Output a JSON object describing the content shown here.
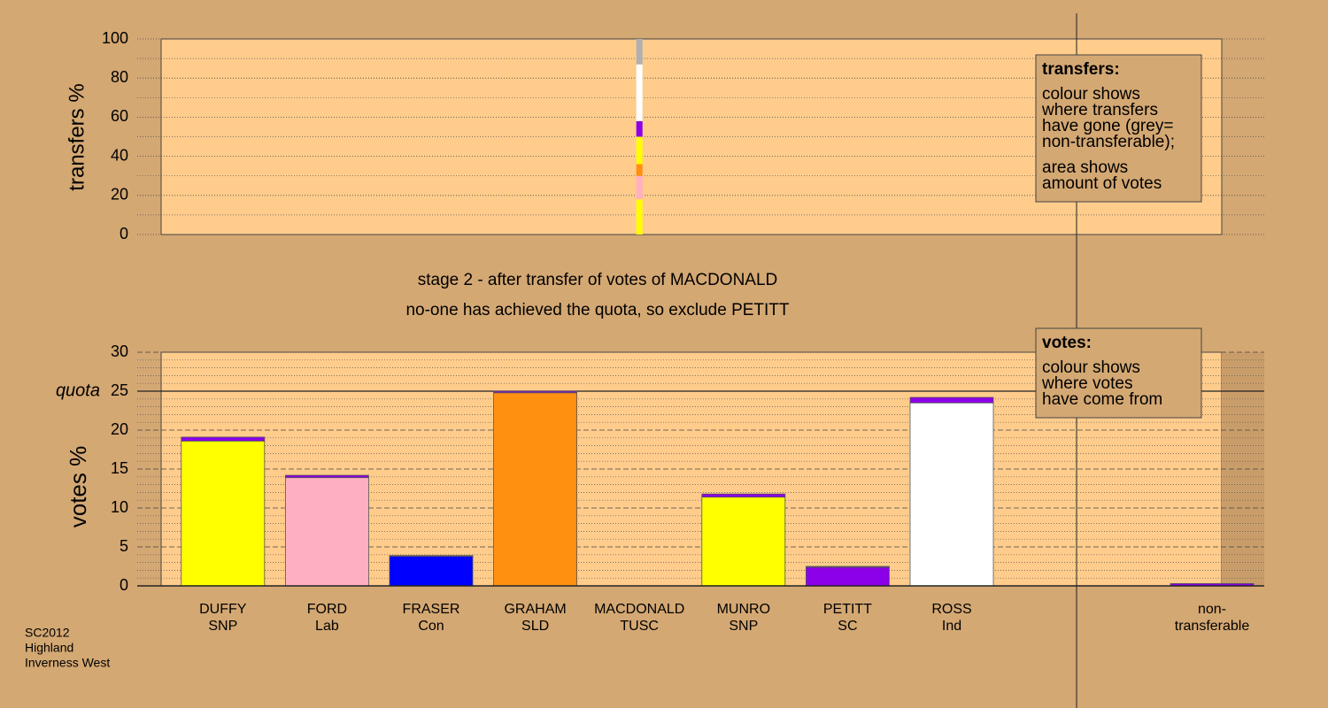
{
  "chart_data": [
    {
      "type": "stacked-bar",
      "ylabel": "transfers %",
      "ylim": [
        0,
        100
      ],
      "yticks": [
        0,
        20,
        40,
        60,
        80,
        100
      ],
      "yminor": [
        10,
        30,
        50,
        70,
        90
      ],
      "values": [
        18,
        12,
        6,
        14,
        8,
        29,
        13
      ],
      "colors": [
        "#ffff00",
        "#ffb0c0",
        "#ff9010",
        "#ffff00",
        "#8b00e8",
        "#ffffff",
        "#b0b0b0"
      ],
      "legend_title": "transfers:",
      "legend_text": [
        [
          "colour shows",
          "where transfers",
          "have gone (grey=",
          "non-transferable);"
        ],
        [
          "area shows",
          "amount of votes"
        ]
      ]
    },
    {
      "type": "bar",
      "title": [
        "stage 2 - after transfer of votes of MACDONALD",
        "no-one has achieved the quota, so exclude PETITT"
      ],
      "ylabel": "votes %",
      "ylim": [
        0,
        30
      ],
      "yticks": [
        0,
        5,
        10,
        15,
        20,
        25,
        30
      ],
      "yminor": [
        1,
        2,
        3,
        4,
        6,
        7,
        8,
        9,
        11,
        12,
        13,
        14,
        16,
        17,
        18,
        19,
        21,
        22,
        23,
        24,
        26,
        27,
        28,
        29
      ],
      "quota": {
        "value": 25,
        "label": "quota"
      },
      "categories": [
        [
          "DUFFY",
          "SNP"
        ],
        [
          "FORD",
          "Lab"
        ],
        [
          "FRASER",
          "Con"
        ],
        [
          "GRAHAM",
          "SLD"
        ],
        [
          "MACDONALD",
          "TUSC"
        ],
        [
          "MUNRO",
          "SNP"
        ],
        [
          "PETITT",
          "SC"
        ],
        [
          "ROSS",
          "Ind"
        ],
        [
          "non-",
          "transferable"
        ]
      ],
      "series": [
        {
          "values": [
            18.6,
            13.9,
            3.8,
            24.8,
            0,
            11.4,
            2.4,
            23.5,
            0
          ],
          "colors": [
            "#ffff00",
            "#ffb0c0",
            "#0000ff",
            "#ff9010",
            "#ff0000",
            "#ffff00",
            "#8b00e8",
            "#ffffff",
            "#b0b0b0"
          ]
        },
        {
          "values": [
            0.5,
            0.3,
            0.1,
            0.2,
            0,
            0.4,
            0.1,
            0.7,
            0.3
          ],
          "color": "#8b00e8"
        }
      ],
      "legend_title": "votes:",
      "legend_text": [
        [
          "colour shows",
          "where votes",
          "have come from"
        ]
      ]
    }
  ],
  "footer": [
    "SC2012",
    "Highland",
    "Inverness West"
  ]
}
